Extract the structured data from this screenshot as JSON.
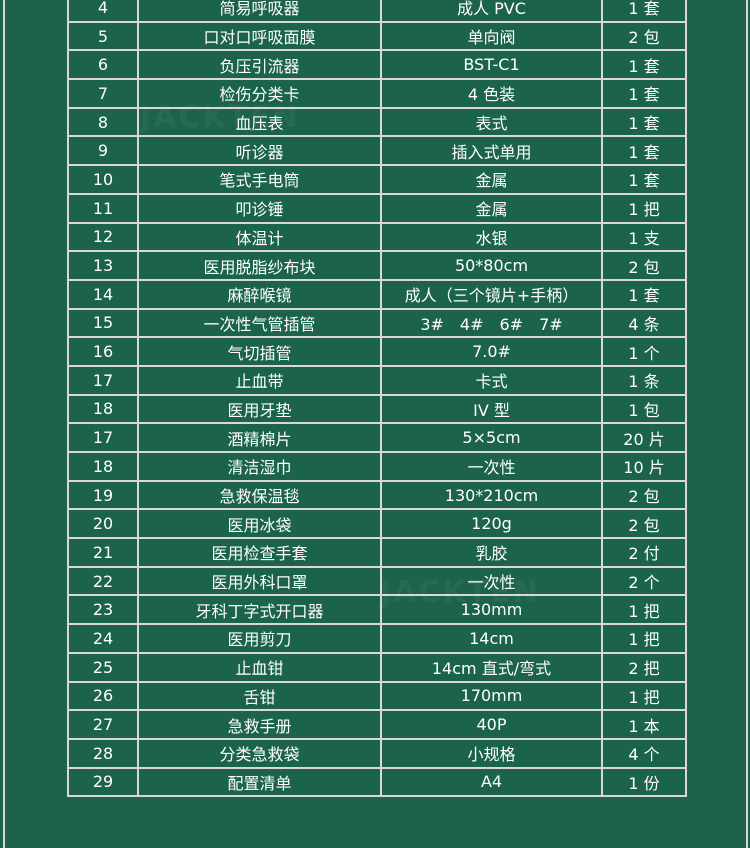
{
  "watermark": "JACKTEN",
  "rows": [
    [
      "4",
      "简易呼吸器",
      "成人 PVC",
      "1 套"
    ],
    [
      "5",
      "口对口呼吸面膜",
      "单向阀",
      "2 包"
    ],
    [
      "6",
      "负压引流器",
      "BST-C1",
      "1 套"
    ],
    [
      "7",
      "检伤分类卡",
      "4 色装",
      "1 套"
    ],
    [
      "8",
      "血压表",
      "表式",
      "1 套"
    ],
    [
      "9",
      "听诊器",
      "插入式单用",
      "1 套"
    ],
    [
      "10",
      "笔式手电筒",
      "金属",
      "1 套"
    ],
    [
      "11",
      "叩诊锤",
      "金属",
      "1 把"
    ],
    [
      "12",
      "体温计",
      "水银",
      "1 支"
    ],
    [
      "13",
      "医用脱脂纱布块",
      "50*80cm",
      "2 包"
    ],
    [
      "14",
      "麻醉喉镜",
      "成人（三个镜片+手柄）",
      "1 套"
    ],
    [
      "15",
      "一次性气管插管",
      "3#　4#　6#　7#",
      "4 条"
    ],
    [
      "16",
      "气切插管",
      "7.0#",
      "1 个"
    ],
    [
      "17",
      "止血带",
      "卡式",
      "1 条"
    ],
    [
      "18",
      "医用牙垫",
      "IV 型",
      "1 包"
    ],
    [
      "17",
      "酒精棉片",
      "5×5cm",
      "20 片"
    ],
    [
      "18",
      "清洁湿巾",
      "一次性",
      "10 片"
    ],
    [
      "19",
      "急救保温毯",
      "130*210cm",
      "2 包"
    ],
    [
      "20",
      "医用冰袋",
      "120g",
      "2 包"
    ],
    [
      "21",
      "医用检查手套",
      "乳胶",
      "2 付"
    ],
    [
      "22",
      "医用外科口罩",
      "一次性",
      "2 个"
    ],
    [
      "23",
      "牙科丁字式开口器",
      "130mm",
      "1 把"
    ],
    [
      "24",
      "医用剪刀",
      "14cm",
      "1 把"
    ],
    [
      "25",
      "止血钳",
      "14cm 直式/弯式",
      "2 把"
    ],
    [
      "26",
      "舌钳",
      "170mm",
      "1 把"
    ],
    [
      "27",
      "急救手册",
      "40P",
      "1 本"
    ],
    [
      "28",
      "分类急救袋",
      "小规格",
      "4 个"
    ],
    [
      "29",
      "配置清单",
      "A4",
      "1 份"
    ]
  ]
}
